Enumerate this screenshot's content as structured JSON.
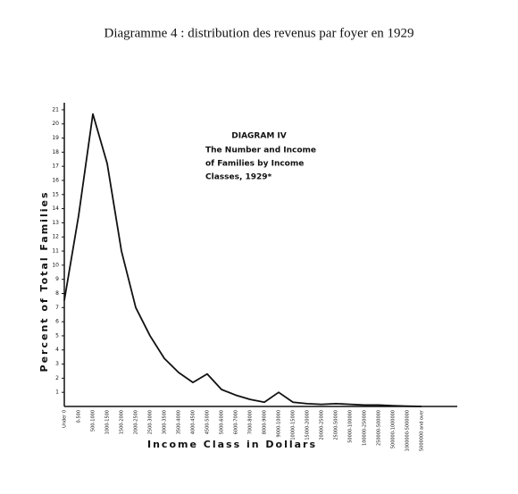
{
  "chart_data": {
    "type": "line",
    "title": "Diagramme 4 : distribution des revenus par foyer en 1929",
    "annotation_title": "DIAGRAM IV",
    "annotation_lines": [
      "The Number and Income",
      "of Families by Income",
      "Classes, 1929*"
    ],
    "y_label": "Percent of Total Families",
    "x_label": "Income Class in Dollars",
    "categories": [
      "Under 0",
      "0-500",
      "500-1000",
      "1000-1500",
      "1500-2000",
      "2000-2500",
      "2500-3000",
      "3000-3500",
      "3500-4000",
      "4000-4500",
      "4500-5000",
      "5000-6000",
      "6000-7000",
      "7000-8000",
      "8000-9000",
      "9000-10000",
      "10000-15000",
      "15000-20000",
      "20000-25000",
      "25000-50000",
      "50000-100000",
      "100000-250000",
      "250000-500000",
      "500000-1000000",
      "1000000-5000000",
      "5000000 and over"
    ],
    "series": [
      {
        "color": "#111111",
        "values": [
          7.5,
          13.5,
          20.7,
          17.2,
          11,
          7,
          5,
          3.4,
          2.4,
          1.7,
          2.3,
          1.2,
          0.8,
          0.5,
          0.3,
          1.0,
          0.3,
          0.2,
          0.15,
          0.2,
          0.15,
          0.1,
          0.1,
          0.05,
          0.02,
          0
        ]
      }
    ],
    "ylim": [
      0,
      21.5
    ],
    "yticks": [
      1,
      2,
      3,
      4,
      5,
      6,
      7,
      8,
      9,
      10,
      11,
      12,
      13,
      14,
      15,
      16,
      17,
      18,
      19,
      20,
      21
    ]
  }
}
